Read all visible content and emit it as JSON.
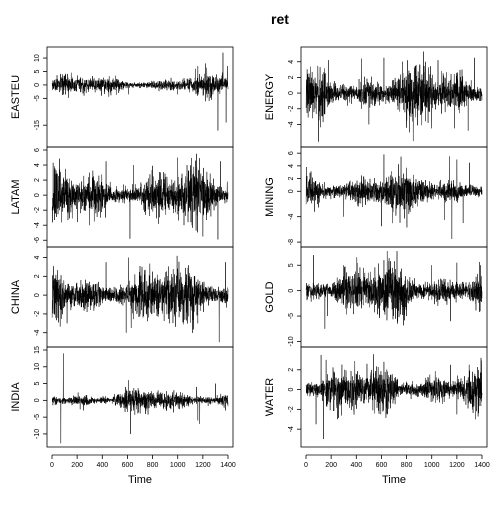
{
  "chart_data": {
    "type": "line",
    "title": "ret",
    "xlabel": "Time",
    "xlim": [
      0,
      1400
    ],
    "xticks": [
      0,
      200,
      400,
      600,
      800,
      1000,
      1200,
      1400
    ],
    "xtick_labels": [
      "0",
      "200",
      "400",
      "600",
      "800",
      "1000",
      "1200",
      "1400"
    ],
    "grid": false,
    "legend": "none",
    "columns": [
      {
        "panels": [
          {
            "ylabel": "EASTEU",
            "ylim": [
              -22,
              13
            ],
            "yticks": [
              -15,
              -5,
              0,
              5,
              10
            ],
            "ytick_labels": [
              "-15",
              "-5",
              "0",
              "5",
              "10"
            ],
            "sigma": 1.3,
            "spikes": [
              [
                255,
                -4
              ],
              [
                530,
                -3
              ],
              [
                610,
                -3.5
              ],
              [
                1000,
                -3.5
              ],
              [
                1140,
                6
              ],
              [
                1160,
                7
              ],
              [
                1220,
                8
              ],
              [
                1250,
                -6
              ],
              [
                1320,
                -17
              ],
              [
                1360,
                12
              ],
              [
                1385,
                -14
              ],
              [
                1395,
                7
              ]
            ]
          },
          {
            "ylabel": "LATAM",
            "ylim": [
              -6.5,
              6
            ],
            "yticks": [
              -6,
              -4,
              -2,
              0,
              2,
              4,
              6
            ],
            "ytick_labels": [
              "-6",
              "-4",
              "-2",
              "0",
              "2",
              "4",
              "6"
            ],
            "sigma": 1.3,
            "spikes": [
              [
                300,
                -4
              ],
              [
                430,
                4.5
              ],
              [
                620,
                -5.8
              ],
              [
                650,
                4
              ],
              [
                1000,
                5
              ],
              [
                1050,
                -4
              ],
              [
                1150,
                5.5
              ],
              [
                1200,
                -5.5
              ],
              [
                1320,
                -5.9
              ],
              [
                1340,
                4.5
              ]
            ]
          },
          {
            "ylabel": "CHINA",
            "ylim": [
              -5.2,
              4.8
            ],
            "yticks": [
              -4,
              -2,
              0,
              2,
              4
            ],
            "ytick_labels": [
              "-4",
              "-2",
              "0",
              "2",
              "4"
            ],
            "sigma": 1.2,
            "spikes": [
              [
                120,
                -3
              ],
              [
                430,
                3.5
              ],
              [
                590,
                -4
              ],
              [
                610,
                4
              ],
              [
                630,
                -3.5
              ],
              [
                800,
                2.5
              ],
              [
                1000,
                2.8
              ],
              [
                1160,
                -3
              ],
              [
                1330,
                -5
              ],
              [
                1380,
                3.5
              ]
            ]
          },
          {
            "ylabel": "INDIA",
            "ylim": [
              -13,
              15
            ],
            "yticks": [
              -10,
              -5,
              0,
              5,
              10,
              15
            ],
            "ytick_labels": [
              "-10",
              "-5",
              "0",
              "5",
              "10",
              "15"
            ],
            "sigma": 1.3,
            "spikes": [
              [
                70,
                -13
              ],
              [
                90,
                14
              ],
              [
                250,
                -3
              ],
              [
                610,
                6
              ],
              [
                625,
                -10
              ],
              [
                1150,
                4
              ],
              [
                1160,
                -6
              ],
              [
                1175,
                -7
              ],
              [
                1300,
                5
              ],
              [
                1380,
                -3
              ]
            ]
          }
        ]
      },
      {
        "panels": [
          {
            "ylabel": "ENERGY",
            "ylim": [
              -6.5,
              5.5
            ],
            "yticks": [
              -4,
              -2,
              0,
              2,
              4
            ],
            "ytick_labels": [
              "-4",
              "-2",
              "0",
              "2",
              "4"
            ],
            "sigma": 1.4,
            "spikes": [
              [
                100,
                -6.2
              ],
              [
                180,
                4.2
              ],
              [
                440,
                4.4
              ],
              [
                500,
                -4
              ],
              [
                620,
                4.5
              ],
              [
                800,
                -4
              ],
              [
                950,
                4
              ],
              [
                1000,
                -4.5
              ],
              [
                1050,
                4.2
              ],
              [
                1180,
                -4.5
              ],
              [
                1290,
                -4.8
              ],
              [
                1340,
                4.5
              ]
            ]
          },
          {
            "ylabel": "MINING",
            "ylim": [
              -8.3,
              6.5
            ],
            "yticks": [
              -8,
              -4,
              0,
              2,
              4,
              6
            ],
            "ytick_labels": [
              "-8",
              "-4",
              "0",
              "2",
              "4",
              "6"
            ],
            "sigma": 1.3,
            "spikes": [
              [
                300,
                -4
              ],
              [
                600,
                -5.5
              ],
              [
                620,
                5.8
              ],
              [
                1100,
                -4.5
              ],
              [
                1140,
                5.5
              ],
              [
                1160,
                -7.5
              ],
              [
                1200,
                5
              ],
              [
                1250,
                -5
              ],
              [
                1300,
                4.5
              ]
            ]
          },
          {
            "ylabel": "GOLD",
            "ylim": [
              -10.5,
              8
            ],
            "yticks": [
              -10,
              -5,
              0,
              5
            ],
            "ytick_labels": [
              "-10",
              "-5",
              "0",
              "5"
            ],
            "sigma": 2.1,
            "spikes": [
              [
                60,
                7
              ],
              [
                150,
                -7.5
              ],
              [
                170,
                -5
              ],
              [
                300,
                5
              ],
              [
                620,
                6
              ],
              [
                800,
                -5
              ],
              [
                1000,
                5
              ],
              [
                1150,
                -6
              ],
              [
                1200,
                5.5
              ],
              [
                1380,
                -4
              ]
            ]
          },
          {
            "ylabel": "WATER",
            "ylim": [
              -5.5,
              4
            ],
            "yticks": [
              -4,
              -2,
              0,
              2
            ],
            "ytick_labels": [
              "-4",
              "-2",
              "0",
              "2"
            ],
            "sigma": 0.9,
            "spikes": [
              [
                80,
                -3.5
              ],
              [
                120,
                3.5
              ],
              [
                140,
                -5
              ],
              [
                160,
                3
              ],
              [
                250,
                -3
              ],
              [
                620,
                2.8
              ],
              [
                650,
                -2.5
              ],
              [
                1150,
                2.5
              ],
              [
                1200,
                -2.5
              ],
              [
                1350,
                -3
              ]
            ]
          }
        ]
      }
    ]
  }
}
